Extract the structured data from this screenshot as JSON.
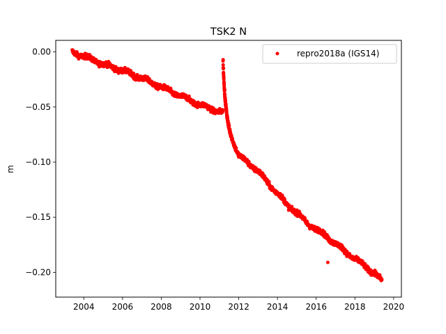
{
  "chart_data": {
    "type": "scatter",
    "title": "TSK2 N",
    "xlabel": "",
    "ylabel": "m",
    "xlim": [
      2002.55,
      2020.4
    ],
    "ylim": [
      -0.2225,
      0.0105
    ],
    "x_ticks": [
      2004,
      2006,
      2008,
      2010,
      2012,
      2014,
      2016,
      2018,
      2020
    ],
    "x_tick_labels": [
      "2004",
      "2006",
      "2008",
      "2010",
      "2012",
      "2014",
      "2016",
      "2018",
      "2020"
    ],
    "y_ticks": [
      0.0,
      -0.05,
      -0.1,
      -0.15,
      -0.2
    ],
    "y_tick_labels": [
      "0.00",
      "−0.05",
      "−0.10",
      "−0.15",
      "−0.20"
    ],
    "grid": false,
    "legend_position": "upper right",
    "marker_color": "#ff0000",
    "series": [
      {
        "name": "repro2018a (IGS14)",
        "trend_x": [
          2003.4,
          2004.0,
          2005.0,
          2006.0,
          2007.0,
          2008.0,
          2009.0,
          2010.0,
          2010.8,
          2011.18
        ],
        "trend_y": [
          0.0,
          -0.004,
          -0.011,
          -0.017,
          -0.024,
          -0.032,
          -0.04,
          -0.048,
          -0.053,
          -0.055
        ],
        "post_x": [
          2011.19,
          2011.2,
          2011.22,
          2011.25,
          2011.3,
          2011.4,
          2011.5,
          2011.6,
          2011.8,
          2012.0,
          2012.2,
          2012.5,
          2013.0,
          2013.5,
          2014.0,
          2014.5,
          2015.0,
          2015.5,
          2016.0,
          2016.5,
          2017.0,
          2017.5,
          2018.0,
          2018.5,
          2019.0,
          2019.4
        ],
        "post_y": [
          -0.008,
          -0.015,
          -0.023,
          -0.032,
          -0.045,
          -0.06,
          -0.069,
          -0.075,
          -0.085,
          -0.094,
          -0.097,
          -0.101,
          -0.108,
          -0.119,
          -0.128,
          -0.139,
          -0.146,
          -0.155,
          -0.161,
          -0.167,
          -0.174,
          -0.181,
          -0.188,
          -0.194,
          -0.201,
          -0.208
        ],
        "outliers": [
          [
            2016.6,
            -0.191
          ]
        ]
      }
    ]
  }
}
